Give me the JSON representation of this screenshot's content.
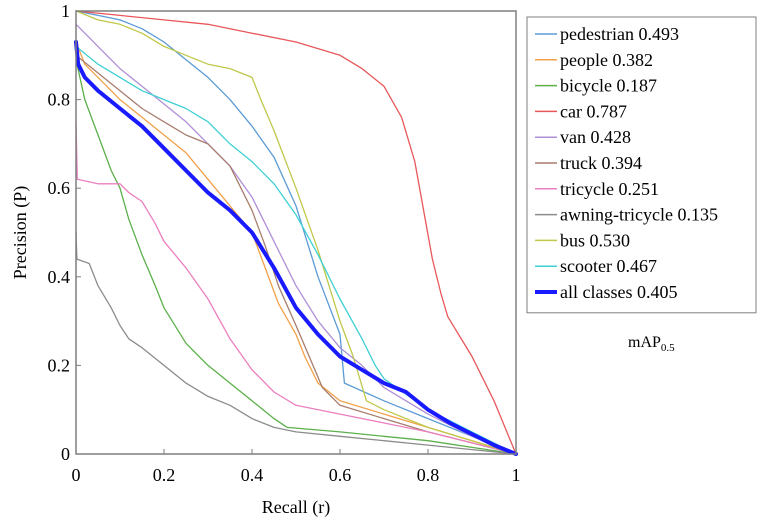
{
  "chart_data": {
    "type": "line",
    "title": "",
    "xlabel": "Recall (r)",
    "ylabel": "Precision (P)",
    "xlim": [
      0,
      1
    ],
    "ylim": [
      0,
      1
    ],
    "grid": false,
    "legend_position": "right",
    "x_ticks": [
      "0",
      "0.2",
      "0.4",
      "0.6",
      "0.8",
      "1"
    ],
    "y_ticks": [
      "0",
      "0.2",
      "0.4",
      "0.6",
      "0.8",
      "1"
    ],
    "legend_note": {
      "main": "mAP",
      "sub": "0.5"
    },
    "series": [
      {
        "name": "pedestrian 0.493",
        "color": "#5b9bd5",
        "width": 1.3,
        "points": [
          [
            0,
            1
          ],
          [
            0.05,
            0.99
          ],
          [
            0.1,
            0.98
          ],
          [
            0.15,
            0.96
          ],
          [
            0.2,
            0.93
          ],
          [
            0.25,
            0.89
          ],
          [
            0.3,
            0.85
          ],
          [
            0.35,
            0.8
          ],
          [
            0.4,
            0.74
          ],
          [
            0.45,
            0.67
          ],
          [
            0.5,
            0.56
          ],
          [
            0.55,
            0.4
          ],
          [
            0.6,
            0.27
          ],
          [
            0.61,
            0.16
          ],
          [
            0.7,
            0.12
          ],
          [
            0.8,
            0.08
          ],
          [
            0.9,
            0.04
          ],
          [
            1,
            0
          ]
        ]
      },
      {
        "name": "people 0.382",
        "color": "#f2a14a",
        "width": 1.3,
        "points": [
          [
            0,
            0.93
          ],
          [
            0.02,
            0.88
          ],
          [
            0.05,
            0.85
          ],
          [
            0.1,
            0.8
          ],
          [
            0.15,
            0.76
          ],
          [
            0.2,
            0.72
          ],
          [
            0.25,
            0.68
          ],
          [
            0.3,
            0.62
          ],
          [
            0.35,
            0.56
          ],
          [
            0.4,
            0.5
          ],
          [
            0.43,
            0.42
          ],
          [
            0.46,
            0.34
          ],
          [
            0.5,
            0.27
          ],
          [
            0.52,
            0.22
          ],
          [
            0.55,
            0.16
          ],
          [
            0.6,
            0.12
          ],
          [
            0.7,
            0.09
          ],
          [
            0.8,
            0.06
          ],
          [
            0.9,
            0.03
          ],
          [
            1,
            0
          ]
        ]
      },
      {
        "name": "bicycle 0.187",
        "color": "#5bb04a",
        "width": 1.3,
        "points": [
          [
            0,
            0.89
          ],
          [
            0.02,
            0.8
          ],
          [
            0.05,
            0.72
          ],
          [
            0.08,
            0.64
          ],
          [
            0.1,
            0.6
          ],
          [
            0.12,
            0.53
          ],
          [
            0.15,
            0.45
          ],
          [
            0.18,
            0.38
          ],
          [
            0.2,
            0.33
          ],
          [
            0.25,
            0.25
          ],
          [
            0.3,
            0.2
          ],
          [
            0.35,
            0.16
          ],
          [
            0.4,
            0.12
          ],
          [
            0.45,
            0.08
          ],
          [
            0.48,
            0.06
          ],
          [
            0.6,
            0.05
          ],
          [
            0.7,
            0.04
          ],
          [
            0.8,
            0.03
          ],
          [
            0.9,
            0.015
          ],
          [
            1,
            0
          ]
        ]
      },
      {
        "name": "car 0.787",
        "color": "#e8575a",
        "width": 1.3,
        "points": [
          [
            0,
            1
          ],
          [
            0.1,
            0.99
          ],
          [
            0.2,
            0.98
          ],
          [
            0.3,
            0.97
          ],
          [
            0.4,
            0.95
          ],
          [
            0.5,
            0.93
          ],
          [
            0.6,
            0.9
          ],
          [
            0.65,
            0.87
          ],
          [
            0.7,
            0.83
          ],
          [
            0.74,
            0.76
          ],
          [
            0.77,
            0.66
          ],
          [
            0.79,
            0.55
          ],
          [
            0.81,
            0.44
          ],
          [
            0.83,
            0.36
          ],
          [
            0.845,
            0.31
          ],
          [
            0.9,
            0.22
          ],
          [
            0.95,
            0.12
          ],
          [
            1,
            0
          ]
        ]
      },
      {
        "name": "van 0.428",
        "color": "#b08fd6",
        "width": 1.3,
        "points": [
          [
            0,
            0.97
          ],
          [
            0.03,
            0.94
          ],
          [
            0.06,
            0.91
          ],
          [
            0.1,
            0.87
          ],
          [
            0.15,
            0.83
          ],
          [
            0.2,
            0.79
          ],
          [
            0.25,
            0.75
          ],
          [
            0.3,
            0.7
          ],
          [
            0.35,
            0.65
          ],
          [
            0.4,
            0.58
          ],
          [
            0.45,
            0.48
          ],
          [
            0.5,
            0.38
          ],
          [
            0.55,
            0.3
          ],
          [
            0.6,
            0.24
          ],
          [
            0.65,
            0.2
          ],
          [
            0.7,
            0.15
          ],
          [
            0.8,
            0.09
          ],
          [
            0.9,
            0.04
          ],
          [
            1,
            0
          ]
        ]
      },
      {
        "name": "truck 0.394",
        "color": "#a87d6e",
        "width": 1.3,
        "points": [
          [
            0,
            0.9
          ],
          [
            0.05,
            0.86
          ],
          [
            0.1,
            0.82
          ],
          [
            0.15,
            0.78
          ],
          [
            0.2,
            0.75
          ],
          [
            0.25,
            0.72
          ],
          [
            0.3,
            0.7
          ],
          [
            0.35,
            0.65
          ],
          [
            0.4,
            0.55
          ],
          [
            0.43,
            0.47
          ],
          [
            0.46,
            0.38
          ],
          [
            0.5,
            0.29
          ],
          [
            0.53,
            0.22
          ],
          [
            0.56,
            0.15
          ],
          [
            0.6,
            0.11
          ],
          [
            0.7,
            0.08
          ],
          [
            0.8,
            0.05
          ],
          [
            0.9,
            0.025
          ],
          [
            1,
            0
          ]
        ]
      },
      {
        "name": "tricycle 0.251",
        "color": "#ec7fbf",
        "width": 1.3,
        "points": [
          [
            0,
            0.75
          ],
          [
            0.003,
            0.62
          ],
          [
            0.05,
            0.61
          ],
          [
            0.1,
            0.61
          ],
          [
            0.12,
            0.59
          ],
          [
            0.15,
            0.57
          ],
          [
            0.18,
            0.52
          ],
          [
            0.2,
            0.48
          ],
          [
            0.25,
            0.42
          ],
          [
            0.3,
            0.35
          ],
          [
            0.35,
            0.26
          ],
          [
            0.4,
            0.19
          ],
          [
            0.45,
            0.14
          ],
          [
            0.5,
            0.11
          ],
          [
            0.6,
            0.09
          ],
          [
            0.7,
            0.07
          ],
          [
            0.8,
            0.05
          ],
          [
            0.9,
            0.025
          ],
          [
            1,
            0
          ]
        ]
      },
      {
        "name": "awning-tricycle 0.135",
        "color": "#8c8c8c",
        "width": 1.3,
        "points": [
          [
            0,
            0.5
          ],
          [
            0.002,
            0.44
          ],
          [
            0.03,
            0.43
          ],
          [
            0.05,
            0.38
          ],
          [
            0.08,
            0.33
          ],
          [
            0.1,
            0.29
          ],
          [
            0.12,
            0.26
          ],
          [
            0.15,
            0.24
          ],
          [
            0.2,
            0.2
          ],
          [
            0.25,
            0.16
          ],
          [
            0.3,
            0.13
          ],
          [
            0.35,
            0.11
          ],
          [
            0.4,
            0.08
          ],
          [
            0.45,
            0.06
          ],
          [
            0.5,
            0.05
          ],
          [
            0.6,
            0.04
          ],
          [
            0.7,
            0.03
          ],
          [
            0.8,
            0.02
          ],
          [
            0.9,
            0.01
          ],
          [
            1,
            0
          ]
        ]
      },
      {
        "name": "bus 0.530",
        "color": "#c0c84a",
        "width": 1.3,
        "points": [
          [
            0,
            1
          ],
          [
            0.05,
            0.98
          ],
          [
            0.1,
            0.97
          ],
          [
            0.15,
            0.95
          ],
          [
            0.2,
            0.92
          ],
          [
            0.25,
            0.9
          ],
          [
            0.3,
            0.88
          ],
          [
            0.35,
            0.87
          ],
          [
            0.4,
            0.85
          ],
          [
            0.42,
            0.8
          ],
          [
            0.45,
            0.73
          ],
          [
            0.5,
            0.6
          ],
          [
            0.55,
            0.46
          ],
          [
            0.6,
            0.3
          ],
          [
            0.63,
            0.22
          ],
          [
            0.66,
            0.12
          ],
          [
            0.7,
            0.1
          ],
          [
            0.8,
            0.06
          ],
          [
            0.9,
            0.03
          ],
          [
            1,
            0
          ]
        ]
      },
      {
        "name": "scooter 0.467",
        "color": "#3fd0d4",
        "width": 1.3,
        "points": [
          [
            0,
            0.92
          ],
          [
            0.05,
            0.88
          ],
          [
            0.1,
            0.85
          ],
          [
            0.15,
            0.82
          ],
          [
            0.2,
            0.8
          ],
          [
            0.25,
            0.78
          ],
          [
            0.3,
            0.75
          ],
          [
            0.35,
            0.7
          ],
          [
            0.4,
            0.66
          ],
          [
            0.45,
            0.61
          ],
          [
            0.5,
            0.54
          ],
          [
            0.55,
            0.45
          ],
          [
            0.6,
            0.35
          ],
          [
            0.65,
            0.26
          ],
          [
            0.68,
            0.2
          ],
          [
            0.7,
            0.17
          ],
          [
            0.8,
            0.1
          ],
          [
            0.9,
            0.05
          ],
          [
            1,
            0
          ]
        ]
      },
      {
        "name": "all classes 0.405",
        "color": "#1a1aff",
        "width": 4,
        "points": [
          [
            0,
            0.93
          ],
          [
            0.005,
            0.88
          ],
          [
            0.02,
            0.85
          ],
          [
            0.05,
            0.82
          ],
          [
            0.1,
            0.78
          ],
          [
            0.15,
            0.74
          ],
          [
            0.2,
            0.69
          ],
          [
            0.25,
            0.64
          ],
          [
            0.3,
            0.59
          ],
          [
            0.35,
            0.55
          ],
          [
            0.4,
            0.5
          ],
          [
            0.45,
            0.42
          ],
          [
            0.5,
            0.33
          ],
          [
            0.55,
            0.27
          ],
          [
            0.6,
            0.22
          ],
          [
            0.65,
            0.19
          ],
          [
            0.7,
            0.16
          ],
          [
            0.75,
            0.14
          ],
          [
            0.8,
            0.1
          ],
          [
            0.85,
            0.07
          ],
          [
            0.9,
            0.045
          ],
          [
            0.95,
            0.02
          ],
          [
            1,
            0
          ]
        ]
      }
    ]
  }
}
